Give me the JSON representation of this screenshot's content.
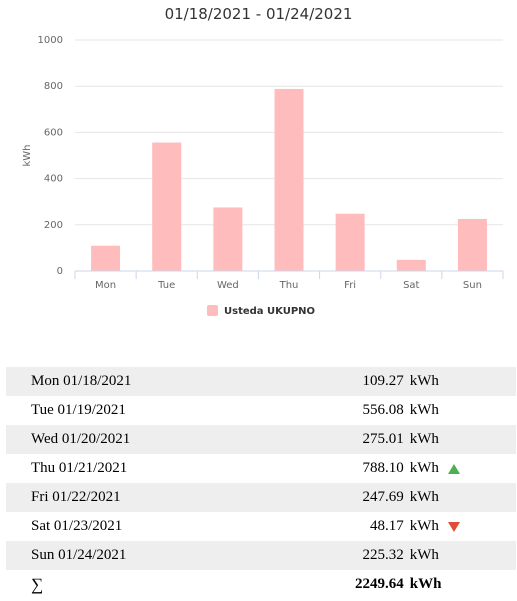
{
  "chart_data": {
    "type": "bar",
    "title": "01/18/2021 - 01/24/2021",
    "ylabel": "kWh",
    "xlabel": "",
    "ylim": [
      0,
      1000
    ],
    "yticks": [
      0,
      200,
      400,
      600,
      800,
      1000
    ],
    "categories": [
      "Mon",
      "Tue",
      "Wed",
      "Thu",
      "Fri",
      "Sat",
      "Sun"
    ],
    "series": [
      {
        "name": "Usteda UKUPNO",
        "values": [
          109.27,
          556.08,
          275.01,
          788.1,
          247.69,
          48.17,
          225.32
        ],
        "color": "#ffbcbc"
      }
    ],
    "grid": true,
    "legend": "bottom-center"
  },
  "table": {
    "rows": [
      {
        "date": "Mon 01/18/2021",
        "value": "109.27",
        "unit": "kWh",
        "indicator": ""
      },
      {
        "date": "Tue 01/19/2021",
        "value": "556.08",
        "unit": "kWh",
        "indicator": ""
      },
      {
        "date": "Wed 01/20/2021",
        "value": "275.01",
        "unit": "kWh",
        "indicator": ""
      },
      {
        "date": "Thu 01/21/2021",
        "value": "788.10",
        "unit": "kWh",
        "indicator": "up"
      },
      {
        "date": "Fri 01/22/2021",
        "value": "247.69",
        "unit": "kWh",
        "indicator": ""
      },
      {
        "date": "Sat 01/23/2021",
        "value": "48.17",
        "unit": "kWh",
        "indicator": "down"
      },
      {
        "date": "Sun 01/24/2021",
        "value": "225.32",
        "unit": "kWh",
        "indicator": ""
      }
    ],
    "total": {
      "symbol": "∑",
      "value": "2249.64",
      "unit": "kWh"
    },
    "colors": {
      "up": "#4caf50",
      "down": "#e04b3a",
      "stripe": "#eeeeee"
    }
  }
}
